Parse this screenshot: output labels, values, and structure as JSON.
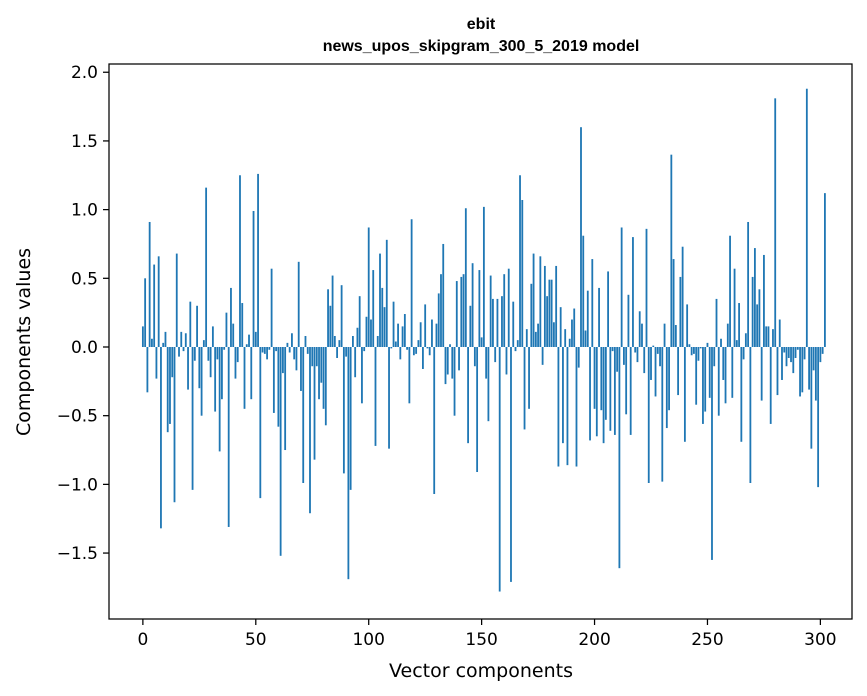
{
  "chart_data": {
    "type": "bar",
    "title": "ebit",
    "subtitle": "news_upos_skipgram_300_5_2019 model",
    "xlabel": "Vector components",
    "ylabel": "Components values",
    "xlim": [
      -15,
      314
    ],
    "ylim": [
      -1.98,
      2.06
    ],
    "xticks": [
      0,
      50,
      100,
      150,
      200,
      250,
      300
    ],
    "yticks": [
      -1.5,
      -1.0,
      -0.5,
      0.0,
      0.5,
      1.0,
      1.5,
      2.0
    ],
    "ytick_labels": [
      "−1.5",
      "−1.0",
      "−0.5",
      "0.0",
      "0.5",
      "1.0",
      "1.5",
      "2.0"
    ],
    "grid": false,
    "bar_color": "#1f77b4",
    "values": [
      0.15,
      0.5,
      -0.33,
      0.91,
      0.06,
      0.6,
      -0.23,
      0.66,
      -1.32,
      0.03,
      0.11,
      -0.62,
      -0.56,
      -0.22,
      -1.13,
      0.68,
      -0.07,
      0.11,
      -0.03,
      0.1,
      -0.31,
      0.33,
      -1.04,
      -0.1,
      0.3,
      -0.3,
      -0.5,
      0.05,
      1.16,
      -0.1,
      -0.22,
      0.15,
      -0.47,
      -0.09,
      -0.76,
      -0.38,
      -0.02,
      0.25,
      -1.31,
      0.43,
      0.17,
      -0.23,
      -0.11,
      1.25,
      0.32,
      -0.45,
      0.02,
      0.09,
      -0.38,
      0.99,
      0.11,
      1.26,
      -1.1,
      -0.04,
      -0.05,
      -0.09,
      -0.02,
      0.57,
      -0.48,
      -0.03,
      -0.58,
      -1.52,
      -0.19,
      -0.75,
      0.03,
      -0.04,
      0.1,
      -0.09,
      -0.17,
      0.62,
      -0.32,
      -0.99,
      0.08,
      -0.05,
      -1.21,
      -0.14,
      -0.82,
      -0.14,
      -0.38,
      -0.26,
      -0.45,
      -0.57,
      0.42,
      0.3,
      0.52,
      0.08,
      -0.08,
      0.05,
      0.45,
      -0.92,
      -0.07,
      -1.69,
      -1.04,
      0.08,
      -0.22,
      0.14,
      0.37,
      -0.41,
      -0.03,
      0.22,
      0.87,
      0.2,
      0.56,
      -0.72,
      0.08,
      0.68,
      0.43,
      0.29,
      0.78,
      -0.74,
      -0.01,
      0.33,
      0.04,
      0.17,
      -0.09,
      0.15,
      0.24,
      -0.02,
      -0.41,
      0.93,
      -0.06,
      -0.05,
      0.05,
      0.18,
      -0.16,
      0.31,
      -0.01,
      -0.06,
      0.2,
      -1.07,
      0.17,
      0.39,
      0.53,
      0.75,
      -0.27,
      -0.2,
      0.02,
      -0.23,
      -0.5,
      0.48,
      -0.17,
      0.51,
      0.53,
      1.01,
      -0.7,
      0.3,
      0.61,
      -0.14,
      -0.91,
      0.56,
      0.07,
      1.02,
      -0.23,
      -0.54,
      0.52,
      0.35,
      -0.11,
      0.35,
      -1.78,
      0.37,
      0.53,
      -0.2,
      0.57,
      -1.71,
      0.33,
      -0.03,
      0.05,
      1.25,
      1.07,
      -0.6,
      0.13,
      -0.45,
      0.46,
      0.68,
      0.11,
      0.17,
      0.66,
      -0.13,
      0.59,
      0.37,
      0.49,
      0.49,
      0.18,
      0.59,
      -0.87,
      0.29,
      -0.7,
      0.13,
      -0.86,
      0.06,
      0.2,
      0.28,
      -0.87,
      -0.15,
      1.6,
      0.81,
      0.12,
      0.41,
      -0.68,
      0.64,
      -0.45,
      -0.65,
      0.43,
      -0.46,
      -0.7,
      -0.53,
      0.55,
      -0.61,
      -0.03,
      -0.64,
      -0.18,
      -1.61,
      0.87,
      -0.13,
      -0.49,
      0.38,
      -0.64,
      0.8,
      -0.04,
      -0.11,
      0.26,
      0.17,
      -0.19,
      0.86,
      -0.99,
      -0.24,
      0.01,
      -0.36,
      -0.05,
      -0.14,
      -0.98,
      0.17,
      -0.59,
      -0.46,
      1.4,
      0.64,
      0.16,
      -0.35,
      0.51,
      0.73,
      -0.69,
      0.31,
      0.02,
      -0.06,
      -0.05,
      -0.42,
      -0.1,
      -0.01,
      -0.56,
      -0.47,
      0.03,
      -0.37,
      -1.55,
      -0.14,
      0.35,
      -0.5,
      0.06,
      -0.24,
      -0.41,
      0.17,
      0.81,
      -0.37,
      0.57,
      0.05,
      0.32,
      -0.69,
      -0.09,
      0.1,
      0.91,
      -0.99,
      0.51,
      0.72,
      0.31,
      0.42,
      -0.39,
      0.67,
      0.15,
      0.15,
      -0.56,
      0.13,
      1.81,
      -0.35,
      0.2,
      -0.24,
      -0.04,
      -0.14,
      -0.08,
      -0.11,
      -0.19,
      -0.08,
      -0.02,
      -0.36,
      -0.33,
      -0.09,
      1.88,
      -0.31,
      -0.74,
      -0.17,
      -0.39,
      -1.02,
      -0.11,
      -0.05,
      1.12
    ]
  }
}
